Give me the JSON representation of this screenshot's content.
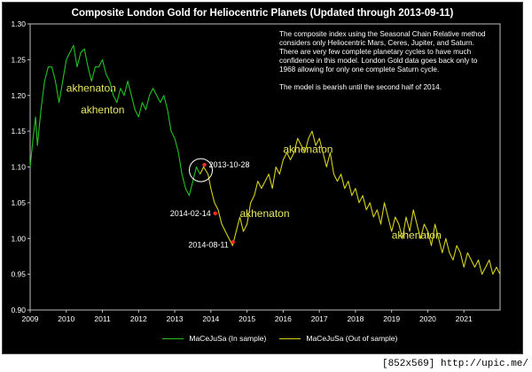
{
  "chart_data": {
    "type": "line",
    "title": "Composite London Gold for Heliocentric Planets (Updated through 2013-09-11)",
    "xlabel": "",
    "ylabel": "",
    "xlim": [
      2009,
      2022
    ],
    "ylim": [
      0.9,
      1.3
    ],
    "x_ticks": [
      "2009",
      "2010",
      "2011",
      "2012",
      "2013",
      "2014",
      "2015",
      "2016",
      "2017",
      "2018",
      "2019",
      "2020",
      "2021"
    ],
    "y_ticks": [
      "0.90",
      "0.95",
      "1.00",
      "1.05",
      "1.10",
      "1.15",
      "1.20",
      "1.25",
      "1.30"
    ],
    "legend_position": "bottom",
    "series": [
      {
        "name": "MaCeJuSa (In sample)",
        "color": "#22c322",
        "points": [
          [
            2009.0,
            1.1
          ],
          [
            2009.08,
            1.14
          ],
          [
            2009.15,
            1.17
          ],
          [
            2009.2,
            1.13
          ],
          [
            2009.3,
            1.18
          ],
          [
            2009.4,
            1.22
          ],
          [
            2009.5,
            1.24
          ],
          [
            2009.6,
            1.24
          ],
          [
            2009.7,
            1.22
          ],
          [
            2009.8,
            1.19
          ],
          [
            2009.9,
            1.22
          ],
          [
            2010.0,
            1.25
          ],
          [
            2010.1,
            1.26
          ],
          [
            2010.2,
            1.27
          ],
          [
            2010.3,
            1.24
          ],
          [
            2010.4,
            1.26
          ],
          [
            2010.5,
            1.265
          ],
          [
            2010.6,
            1.24
          ],
          [
            2010.7,
            1.22
          ],
          [
            2010.8,
            1.24
          ],
          [
            2010.9,
            1.24
          ],
          [
            2011.0,
            1.25
          ],
          [
            2011.1,
            1.23
          ],
          [
            2011.2,
            1.22
          ],
          [
            2011.3,
            1.2
          ],
          [
            2011.4,
            1.19
          ],
          [
            2011.5,
            1.21
          ],
          [
            2011.6,
            1.2
          ],
          [
            2011.7,
            1.22
          ],
          [
            2011.8,
            1.2
          ],
          [
            2011.9,
            1.18
          ],
          [
            2012.0,
            1.17
          ],
          [
            2012.1,
            1.19
          ],
          [
            2012.2,
            1.18
          ],
          [
            2012.3,
            1.2
          ],
          [
            2012.4,
            1.21
          ],
          [
            2012.5,
            1.2
          ],
          [
            2012.6,
            1.19
          ],
          [
            2012.7,
            1.2
          ],
          [
            2012.8,
            1.18
          ],
          [
            2012.9,
            1.15
          ],
          [
            2013.0,
            1.14
          ],
          [
            2013.1,
            1.12
          ],
          [
            2013.2,
            1.09
          ],
          [
            2013.3,
            1.07
          ],
          [
            2013.4,
            1.06
          ],
          [
            2013.5,
            1.08
          ],
          [
            2013.6,
            1.1
          ],
          [
            2013.7,
            1.09
          ]
        ]
      },
      {
        "name": "MaCeJuSa (Out of sample)",
        "color": "#d7d21a",
        "points": [
          [
            2013.7,
            1.09
          ],
          [
            2013.8,
            1.1
          ],
          [
            2013.92,
            1.09
          ],
          [
            2014.0,
            1.07
          ],
          [
            2014.1,
            1.05
          ],
          [
            2014.2,
            1.04
          ],
          [
            2014.3,
            1.02
          ],
          [
            2014.4,
            1.01
          ],
          [
            2014.5,
            1.0
          ],
          [
            2014.6,
            0.99
          ],
          [
            2014.7,
            1.01
          ],
          [
            2014.8,
            1.03
          ],
          [
            2014.9,
            1.01
          ],
          [
            2015.0,
            1.02
          ],
          [
            2015.1,
            1.05
          ],
          [
            2015.2,
            1.06
          ],
          [
            2015.3,
            1.08
          ],
          [
            2015.4,
            1.07
          ],
          [
            2015.5,
            1.08
          ],
          [
            2015.6,
            1.09
          ],
          [
            2015.7,
            1.07
          ],
          [
            2015.8,
            1.1
          ],
          [
            2015.9,
            1.09
          ],
          [
            2016.0,
            1.11
          ],
          [
            2016.1,
            1.12
          ],
          [
            2016.2,
            1.11
          ],
          [
            2016.3,
            1.12
          ],
          [
            2016.4,
            1.14
          ],
          [
            2016.5,
            1.13
          ],
          [
            2016.6,
            1.12
          ],
          [
            2016.7,
            1.14
          ],
          [
            2016.8,
            1.15
          ],
          [
            2016.9,
            1.13
          ],
          [
            2017.0,
            1.14
          ],
          [
            2017.1,
            1.12
          ],
          [
            2017.2,
            1.1
          ],
          [
            2017.3,
            1.12
          ],
          [
            2017.4,
            1.09
          ],
          [
            2017.5,
            1.08
          ],
          [
            2017.6,
            1.09
          ],
          [
            2017.7,
            1.07
          ],
          [
            2017.8,
            1.08
          ],
          [
            2017.9,
            1.06
          ],
          [
            2018.0,
            1.07
          ],
          [
            2018.1,
            1.05
          ],
          [
            2018.2,
            1.06
          ],
          [
            2018.3,
            1.04
          ],
          [
            2018.4,
            1.05
          ],
          [
            2018.5,
            1.03
          ],
          [
            2018.6,
            1.04
          ],
          [
            2018.7,
            1.02
          ],
          [
            2018.8,
            1.05
          ],
          [
            2018.9,
            1.03
          ],
          [
            2019.0,
            1.01
          ],
          [
            2019.1,
            1.03
          ],
          [
            2019.2,
            1.02
          ],
          [
            2019.3,
            1.0
          ],
          [
            2019.4,
            1.03
          ],
          [
            2019.5,
            1.01
          ],
          [
            2019.6,
            1.04
          ],
          [
            2019.7,
            1.02
          ],
          [
            2019.8,
            1.0
          ],
          [
            2019.9,
            1.02
          ],
          [
            2020.0,
            1.01
          ],
          [
            2020.1,
            0.99
          ],
          [
            2020.2,
            1.02
          ],
          [
            2020.3,
            1.0
          ],
          [
            2020.4,
            0.98
          ],
          [
            2020.5,
            1.0
          ],
          [
            2020.6,
            0.98
          ],
          [
            2020.7,
            0.97
          ],
          [
            2020.8,
            0.99
          ],
          [
            2020.9,
            0.98
          ],
          [
            2021.0,
            0.96
          ],
          [
            2021.1,
            0.98
          ],
          [
            2021.2,
            0.97
          ],
          [
            2021.3,
            0.96
          ],
          [
            2021.4,
            0.97
          ],
          [
            2021.5,
            0.95
          ],
          [
            2021.6,
            0.96
          ],
          [
            2021.7,
            0.97
          ],
          [
            2021.8,
            0.95
          ],
          [
            2021.9,
            0.96
          ],
          [
            2022.0,
            0.95
          ]
        ]
      }
    ],
    "annotations": [
      {
        "label": "2013-10-28",
        "x": 2013.82,
        "y": 1.103,
        "marker": "circle"
      },
      {
        "label": "2014-02-14",
        "x": 2014.12,
        "y": 1.035
      },
      {
        "label": "2014-08-11",
        "x": 2014.61,
        "y": 0.995
      }
    ],
    "watermarks": [
      {
        "text": "akhenaton",
        "x": 2010.0,
        "y": 1.205
      },
      {
        "text": "akhenton",
        "x": 2010.4,
        "y": 1.175
      },
      {
        "text": "akhenaton",
        "x": 2016.0,
        "y": 1.12
      },
      {
        "text": "akhenaton",
        "x": 2014.8,
        "y": 1.03
      },
      {
        "text": "akhenaton",
        "x": 2019.0,
        "y": 1.0
      }
    ],
    "note": [
      "The composite index using the Seasonal Chain Relative method considers only Heliocentric Mars, Ceres, Jupiter, and Saturn.  There are very few complete planetary cycles to have much confidence in this model.  London Gold data goes back only to 1968 allowing for only one complete Saturn cycle.",
      "The model is bearish until the second half of 2014."
    ],
    "marker_color": "#ff2a2a"
  },
  "footer": "[852x569] http://upic.me/"
}
